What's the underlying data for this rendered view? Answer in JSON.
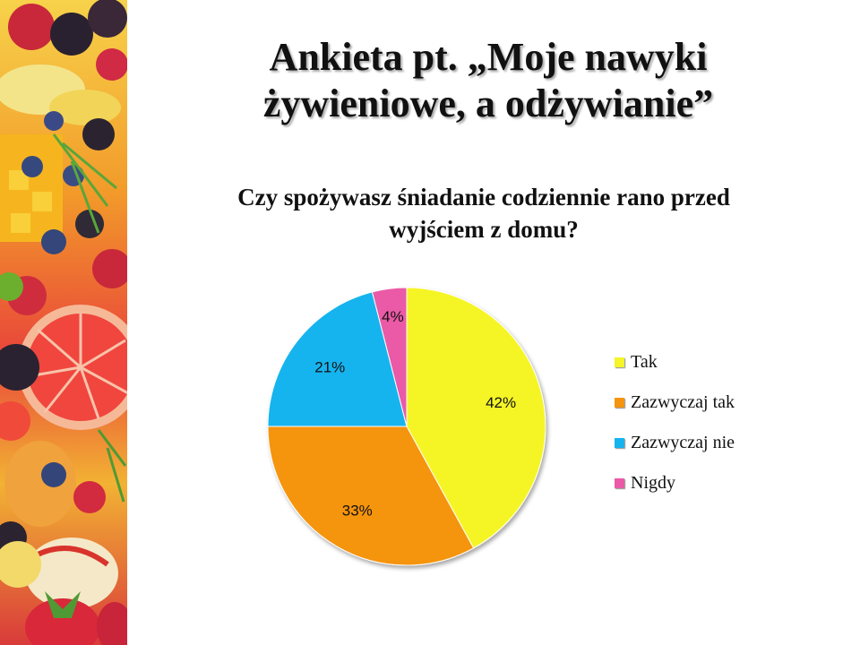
{
  "slide": {
    "title": "Ankieta pt. „Moje nawyki żywieniowe, a odżywianie”"
  },
  "chart_data": {
    "type": "pie",
    "title": "Czy spożywasz śniadanie codziennie rano przed wyjściem z domu?",
    "categories": [
      "Tak",
      "Zazwyczaj tak",
      "Zazwyczaj nie",
      "Nigdy"
    ],
    "values": [
      42,
      33,
      21,
      4
    ],
    "labels": [
      "42%",
      "33%",
      "21%",
      "4%"
    ],
    "colors": [
      "#f5f528",
      "#f5940f",
      "#16b4ee",
      "#ea5aa6"
    ],
    "legend_position": "right"
  }
}
